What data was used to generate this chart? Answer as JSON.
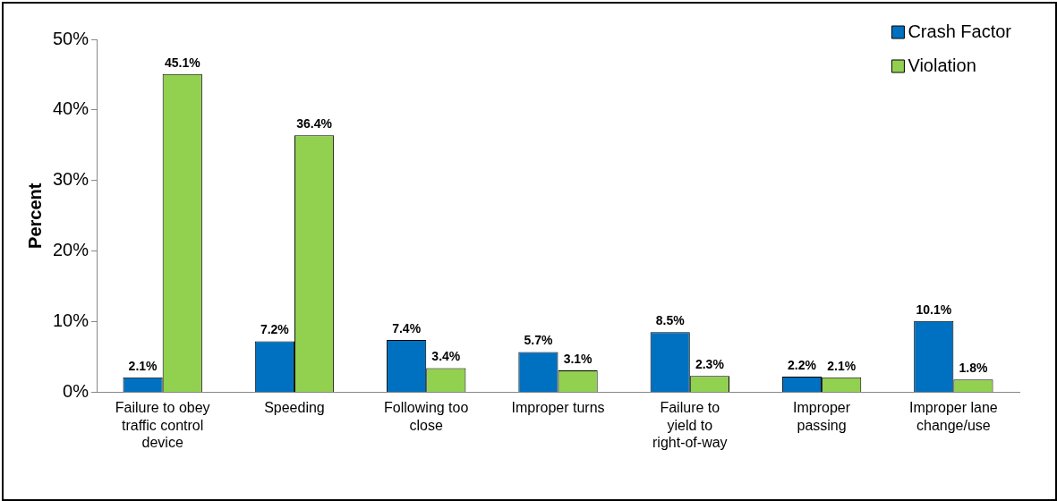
{
  "chart_data": {
    "type": "bar",
    "ylabel": "Percent",
    "categories": [
      "Failure to obey traffic control device",
      "Speeding",
      "Following too close",
      "Improper turns",
      "Failure to yield to right-of-way",
      "Improper passing",
      "Improper lane change/use"
    ],
    "series": [
      {
        "name": "Crash Factor",
        "color": "#0070c0",
        "values": [
          2.1,
          7.2,
          7.4,
          5.7,
          8.5,
          2.2,
          10.1
        ]
      },
      {
        "name": "Violation",
        "color": "#92d050",
        "values": [
          45.1,
          36.4,
          3.4,
          3.1,
          2.3,
          2.1,
          1.8
        ]
      }
    ],
    "value_labels": [
      [
        "2.1%",
        "7.2%",
        "7.4%",
        "5.7%",
        "8.5%",
        "2.2%",
        "10.1%"
      ],
      [
        "45.1%",
        "36.4%",
        "3.4%",
        "3.1%",
        "2.3%",
        "2.1%",
        "1.8%"
      ]
    ],
    "ylim": [
      0,
      50
    ],
    "yticks": [
      {
        "value": 0,
        "label": "0%"
      },
      {
        "value": 10,
        "label": "10%"
      },
      {
        "value": 20,
        "label": "20%"
      },
      {
        "value": 30,
        "label": "30%"
      },
      {
        "value": 40,
        "label": "40%"
      },
      {
        "value": 50,
        "label": "50%"
      }
    ],
    "grid": false,
    "legend": "top right"
  }
}
